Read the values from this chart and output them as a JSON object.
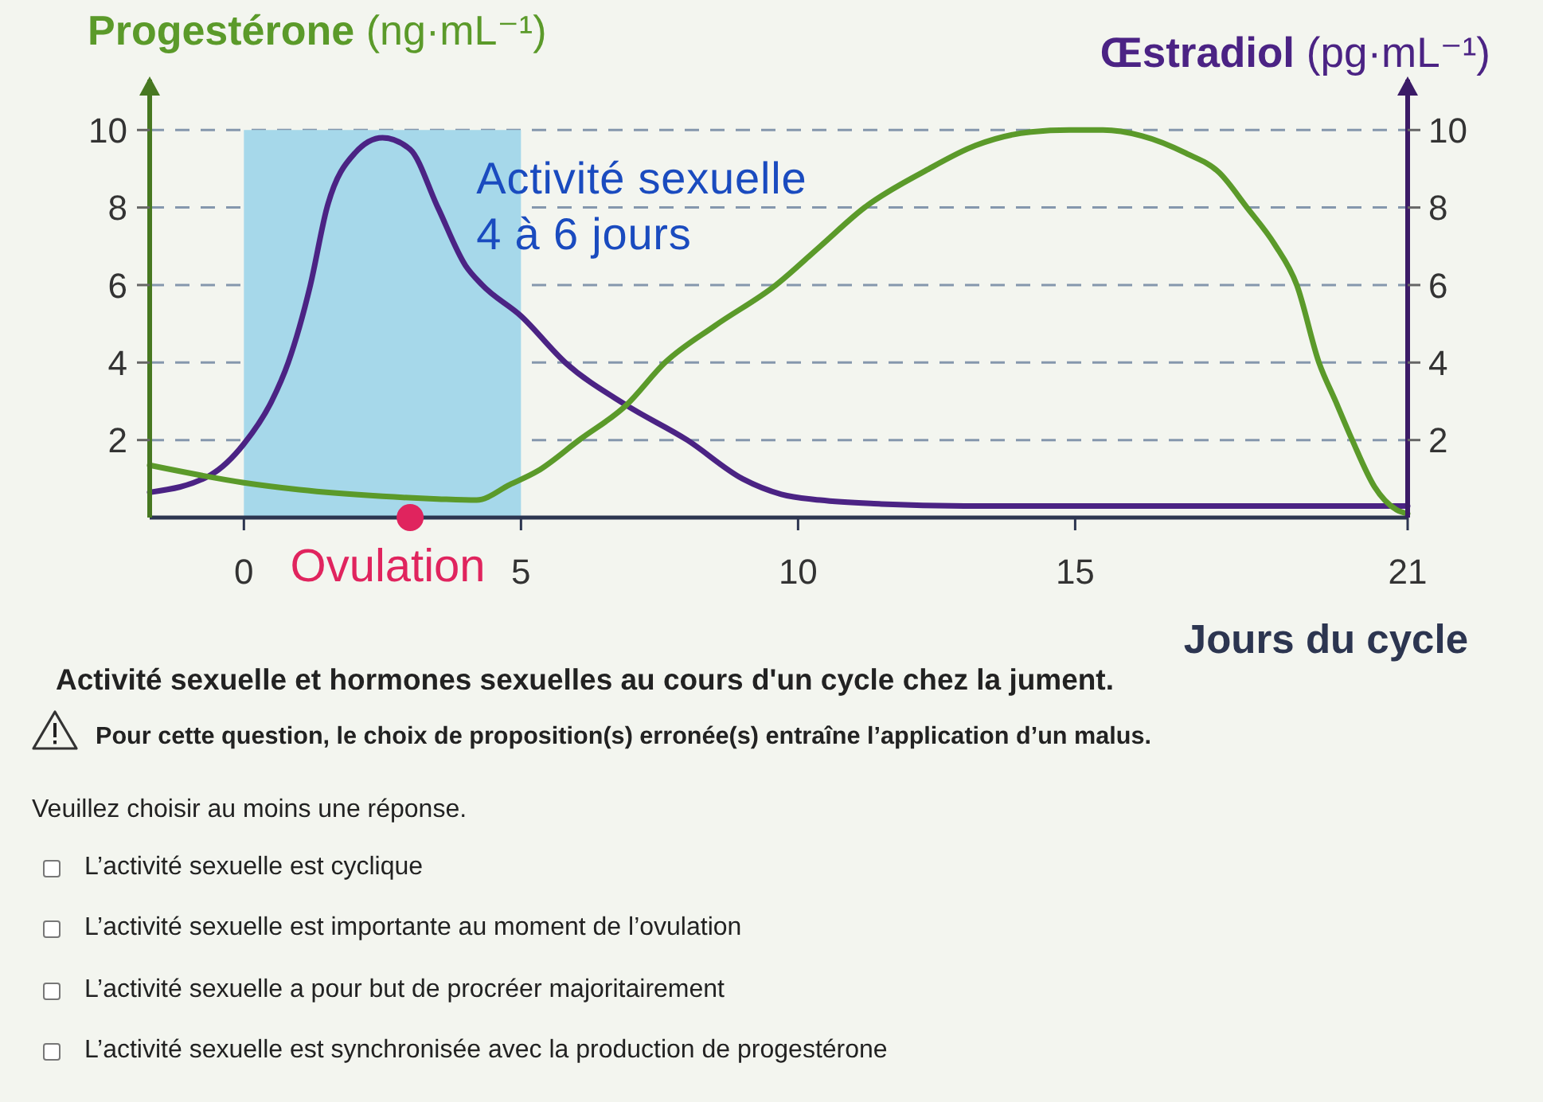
{
  "chart_data": {
    "type": "line",
    "xlabel": "Jours du cycle",
    "ylabel": "Progestérone (ng·mL⁻¹)",
    "y2label": "Œstradiol (pg·mL⁻¹)",
    "xlim": [
      -1.7,
      21
    ],
    "xticks": [
      0,
      5,
      10,
      15,
      21
    ],
    "ylim": [
      0,
      11.3
    ],
    "yticks": [
      2,
      4,
      6,
      8,
      10
    ],
    "y2lim": [
      0,
      11.3
    ],
    "y2ticks": [
      2,
      4,
      6,
      8,
      10
    ],
    "grid": "y",
    "legend": false,
    "marker": "none",
    "line_style": "solid",
    "series": [
      {
        "color": "#4b2384",
        "axis": "y2",
        "x": [
          -1.7,
          -0.6,
          0,
          0.5,
          0.8,
          1.2,
          1.5,
          2,
          2.5,
          3,
          3.5,
          4,
          4.3,
          5,
          5.8,
          6.9,
          8,
          9,
          9.7,
          10.4,
          11.5,
          13,
          15,
          18,
          21
        ],
        "values": [
          0.65,
          1.1,
          1.9,
          3.0,
          4.0,
          6.0,
          8.0,
          9.4,
          9.8,
          9.5,
          8.0,
          6.5,
          6.0,
          5.2,
          4.0,
          2.9,
          2.0,
          1.0,
          0.6,
          0.45,
          0.35,
          0.3,
          0.3,
          0.3,
          0.3
        ]
      },
      {
        "color": "#5b9a2a",
        "x": [
          -1.7,
          0,
          1,
          2.5,
          3.5,
          4.2,
          4.8,
          5.3,
          6.05,
          6.9,
          7.6,
          8.5,
          9.6,
          10.4,
          11.2,
          12.3,
          13.2,
          14.2,
          14.9,
          15.5,
          16.2,
          17,
          17.6,
          18.1,
          18.6,
          19,
          19.4,
          19.7,
          20,
          20.4,
          20.8,
          21
        ],
        "values": [
          1.35,
          0.9,
          0.72,
          0.55,
          0.48,
          0.45,
          0.85,
          1.2,
          2.0,
          2.9,
          4.0,
          4.95,
          6.0,
          7.0,
          8.0,
          8.95,
          9.6,
          9.95,
          10.0,
          10.0,
          9.85,
          9.4,
          8.9,
          8.0,
          7.05,
          6.0,
          4.0,
          3.0,
          2.0,
          0.8,
          0.2,
          0.1
        ]
      },
      {
        "type": "scatter",
        "name": "Ovulation",
        "color": "#e0245e",
        "marker": "circle",
        "x": [
          3
        ],
        "values": [
          0
        ]
      }
    ],
    "bands": [
      {
        "axis": "x",
        "from": 0,
        "to": 5,
        "label": "Activité sexuelle\n4 à 6 jours",
        "color": "#a6d8ea"
      }
    ],
    "annotations": [
      "Activité sexuelle et hormones sexuelles au cours d'un cycle chez la jument.",
      "Pour cette question, le choix de proposition(s) erronée(s) entraîne l’application d’un malus.",
      "Veuillez choisir au moins une réponse.",
      "L’activité sexuelle est cyclique",
      "L’activité sexuelle est importante au moment de l’ovulation",
      "L’activité sexuelle a pour but de procréer majoritairement",
      "L’activité sexuelle est synchronisée avec la production de progestérone"
    ]
  }
}
